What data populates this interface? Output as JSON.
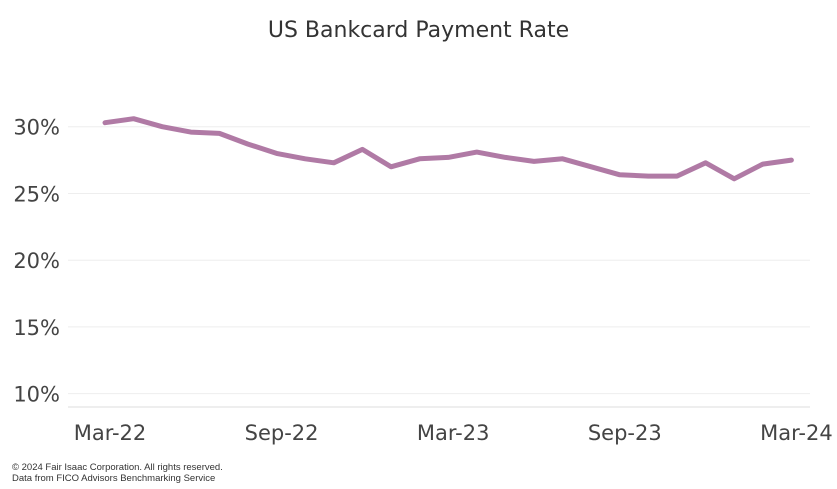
{
  "chart_data": {
    "type": "line",
    "title": "US Bankcard Payment Rate",
    "xlabel": "",
    "ylabel": "",
    "x": [
      "Mar-22",
      "Apr-22",
      "May-22",
      "Jun-22",
      "Jul-22",
      "Aug-22",
      "Sep-22",
      "Oct-22",
      "Nov-22",
      "Dec-22",
      "Jan-23",
      "Feb-23",
      "Mar-23",
      "Apr-23",
      "May-23",
      "Jun-23",
      "Jul-23",
      "Aug-23",
      "Sep-23",
      "Oct-23",
      "Nov-23",
      "Dec-23",
      "Jan-24",
      "Feb-24",
      "Mar-24",
      "Apr-24"
    ],
    "series": [
      {
        "name": "",
        "values": [
          30.3,
          30.6,
          30.0,
          29.6,
          29.5,
          28.7,
          28.0,
          27.6,
          27.3,
          28.3,
          27.0,
          27.6,
          27.7,
          28.1,
          27.7,
          27.4,
          27.6,
          27.0,
          26.4,
          26.3,
          26.3,
          27.3,
          26.1,
          27.2,
          27.5,
          null
        ]
      }
    ],
    "x_tick_labels": [
      "Mar-22",
      "Sep-22",
      "Mar-23",
      "Sep-23",
      "Mar-24"
    ],
    "y_ticks": [
      10,
      15,
      20,
      25,
      30
    ],
    "y_tick_labels": [
      "10%",
      "15%",
      "20%",
      "25%",
      "30%"
    ],
    "ylim": [
      9,
      35
    ],
    "grid": true,
    "legend": "none",
    "line_color": "#b07aa5",
    "grid_color": "#eeeeee"
  },
  "footer": {
    "copyright": "© 2024 Fair Isaac Corporation. All rights reserved.",
    "source": "Data from FICO Advisors Benchmarking Service"
  }
}
